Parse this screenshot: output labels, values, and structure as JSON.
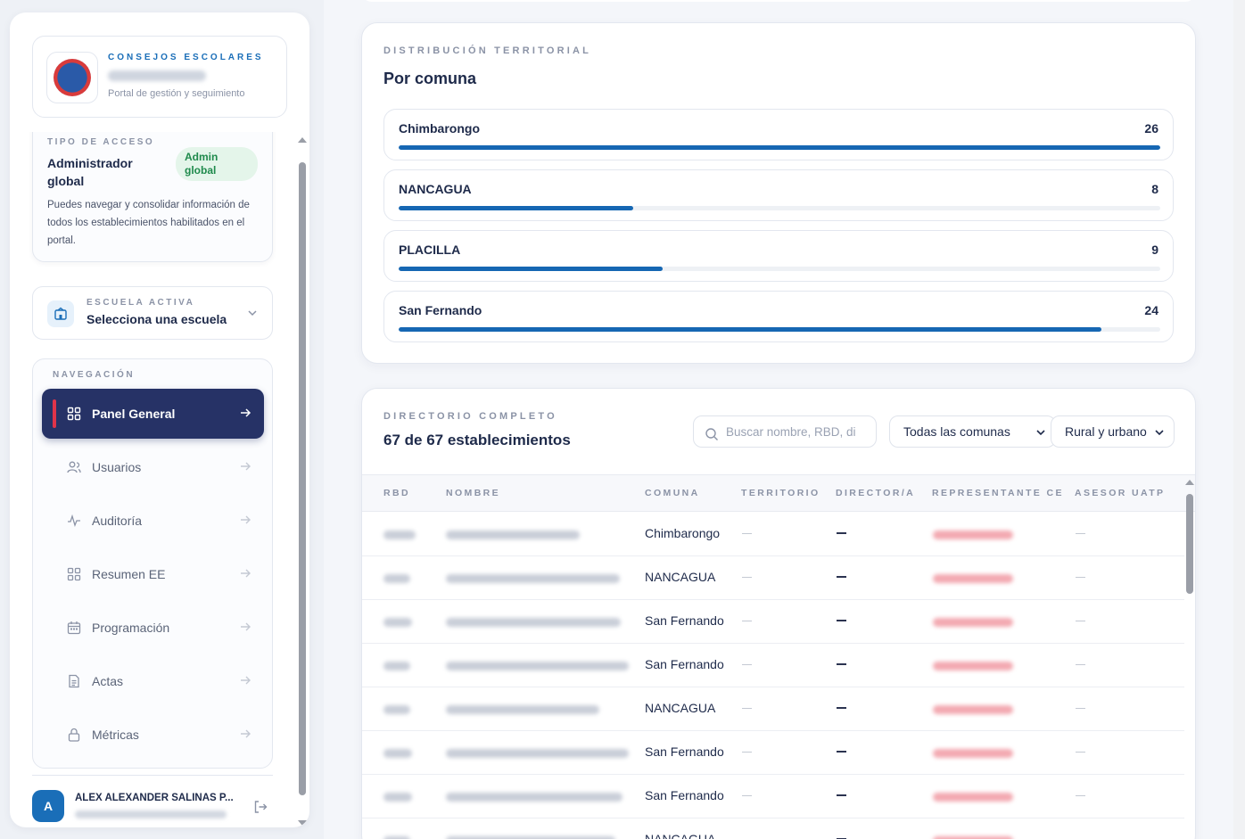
{
  "brand": {
    "kicker": "CONSEJOS ESCOLARES",
    "subtitle": "Portal de gestión y seguimiento"
  },
  "access": {
    "kicker": "TIPO DE ACCESO",
    "role": "Administrador global",
    "badge": "Admin global",
    "description": "Puedes navegar y consolidar información de todos los establecimientos habilitados en el portal."
  },
  "school": {
    "kicker": "ESCUELA ACTIVA",
    "value": "Selecciona una escuela"
  },
  "nav": {
    "kicker": "NAVEGACIÓN",
    "items": [
      {
        "label": "Panel General",
        "icon": "grid-icon",
        "active": true
      },
      {
        "label": "Usuarios",
        "icon": "users-icon",
        "active": false
      },
      {
        "label": "Auditoría",
        "icon": "activity-icon",
        "active": false
      },
      {
        "label": "Resumen EE",
        "icon": "grid-icon",
        "active": false
      },
      {
        "label": "Programación",
        "icon": "calendar-icon",
        "active": false
      },
      {
        "label": "Actas",
        "icon": "document-icon",
        "active": false
      },
      {
        "label": "Métricas",
        "icon": "lock-icon",
        "active": false
      }
    ]
  },
  "user": {
    "initial": "A",
    "name": "ALEX ALEXANDER SALINAS P..."
  },
  "distribution": {
    "kicker": "DISTRIBUCIÓN TERRITORIAL",
    "title": "Por comuna",
    "max": 26,
    "communes": [
      {
        "name": "Chimbarongo",
        "count": 26
      },
      {
        "name": "NANCAGUA",
        "count": 8
      },
      {
        "name": "PLACILLA",
        "count": 9
      },
      {
        "name": "San Fernando",
        "count": 24
      }
    ]
  },
  "directory": {
    "kicker": "DIRECTORIO COMPLETO",
    "title": "67 de 67 establecimientos",
    "search_placeholder": "Buscar nombre, RBD, di",
    "commune_filter": "Todas las comunas",
    "area_filter": "Rural y urbano",
    "columns": [
      "RBD",
      "NOMBRE",
      "COMUNA",
      "TERRITORIO",
      "DIRECTOR/A",
      "REPRESENTANTE CE",
      "ASESOR UATP"
    ],
    "rows": [
      {
        "comuna": "Chimbarongo"
      },
      {
        "comuna": "NANCAGUA"
      },
      {
        "comuna": "San Fernando"
      },
      {
        "comuna": "San Fernando"
      },
      {
        "comuna": "NANCAGUA"
      },
      {
        "comuna": "San Fernando"
      },
      {
        "comuna": "San Fernando"
      },
      {
        "comuna": "NANCAGUA"
      }
    ],
    "dash_light": "—",
    "dash_dark": "—"
  },
  "colors": {
    "accent": "#1667b3",
    "nav_active": "#263266",
    "danger": "#e0344a",
    "badge_bg": "#e4f5ea",
    "badge_text": "#1f8a4c"
  }
}
